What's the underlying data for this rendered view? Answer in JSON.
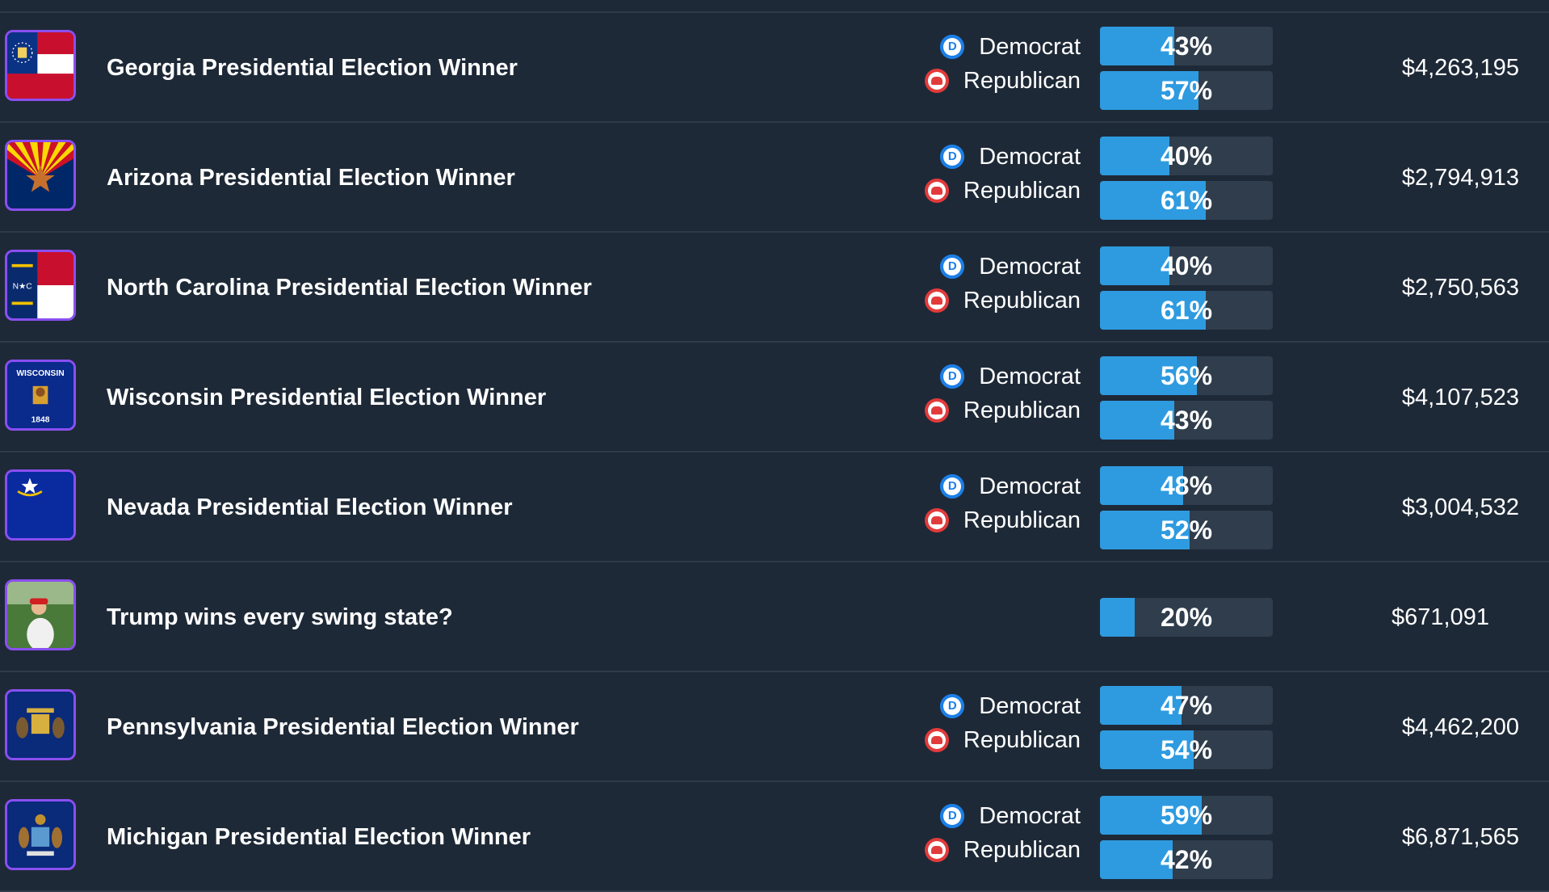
{
  "markets": [
    {
      "title": "Georgia Presidential Election Winner",
      "image_icon": "georgia-flag-icon",
      "dem_label": "Democrat",
      "rep_label": "Republican",
      "dem_pct": "43%",
      "rep_pct": "57%",
      "dem_value": 43,
      "rep_value": 57,
      "volume": "$4,263,195"
    },
    {
      "title": "Arizona Presidential Election Winner",
      "image_icon": "arizona-flag-icon",
      "dem_label": "Democrat",
      "rep_label": "Republican",
      "dem_pct": "40%",
      "rep_pct": "61%",
      "dem_value": 40,
      "rep_value": 61,
      "volume": "$2,794,913"
    },
    {
      "title": "North Carolina Presidential Election Winner",
      "image_icon": "north-carolina-flag-icon",
      "dem_label": "Democrat",
      "rep_label": "Republican",
      "dem_pct": "40%",
      "rep_pct": "61%",
      "dem_value": 40,
      "rep_value": 61,
      "volume": "$2,750,563"
    },
    {
      "title": "Wisconsin Presidential Election Winner",
      "image_icon": "wisconsin-flag-icon",
      "flag_text_top": "WISCONSIN",
      "flag_text_bottom": "1848",
      "dem_label": "Democrat",
      "rep_label": "Republican",
      "dem_pct": "56%",
      "rep_pct": "43%",
      "dem_value": 56,
      "rep_value": 43,
      "volume": "$4,107,523"
    },
    {
      "title": "Nevada Presidential Election Winner",
      "image_icon": "nevada-flag-icon",
      "dem_label": "Democrat",
      "rep_label": "Republican",
      "dem_pct": "48%",
      "rep_pct": "52%",
      "dem_value": 48,
      "rep_value": 52,
      "volume": "$3,004,532"
    },
    {
      "title": "Trump wins every swing state?",
      "image_icon": "golfer-photo-icon",
      "single_pct": "20%",
      "single_value": 20,
      "volume": "$671,091"
    },
    {
      "title": "Pennsylvania Presidential Election Winner",
      "image_icon": "pennsylvania-flag-icon",
      "dem_label": "Democrat",
      "rep_label": "Republican",
      "dem_pct": "47%",
      "rep_pct": "54%",
      "dem_value": 47,
      "rep_value": 54,
      "volume": "$4,462,200"
    },
    {
      "title": "Michigan Presidential Election Winner",
      "image_icon": "michigan-flag-icon",
      "dem_label": "Democrat",
      "rep_label": "Republican",
      "dem_pct": "59%",
      "rep_pct": "42%",
      "dem_value": 59,
      "rep_value": 42,
      "volume": "$6,871,565"
    }
  ],
  "colors": {
    "background": "#1e2937",
    "bar_track": "#2f3d4c",
    "bar_fill": "#2e9be0",
    "democrat": "#1c7fe6",
    "republican": "#e23b3b",
    "thumb_border": "#8a4ff0"
  }
}
